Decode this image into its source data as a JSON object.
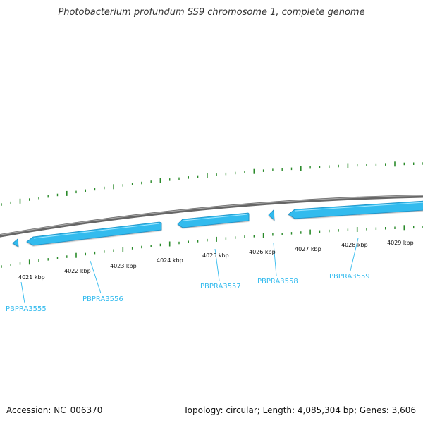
{
  "title": "Photobacterium profundum SS9 chromosome 1, complete genome",
  "footer": {
    "accession": "Accession: NC_006370",
    "summary": "Topology: circular; Length: 4,085,304 bp; Genes: 3,606"
  },
  "colors": {
    "gene": "#33bbee",
    "gene_dark": "#1a8fc4",
    "gene_light": "#8fe0ff",
    "tick": "#2a8a2a",
    "backbone": "#808080",
    "label": "#33bbee"
  },
  "chart_data": {
    "type": "genome-map",
    "tick_labels": [
      "4021 kbp",
      "4022 kbp",
      "4023 kbp",
      "4024 kbp",
      "4025 kbp",
      "4026 kbp",
      "4027 kbp",
      "4028 kbp",
      "4029 kbp"
    ],
    "genes": [
      {
        "label": "PBPRA3555",
        "strand": "-"
      },
      {
        "label": "PBPRA3556",
        "strand": "-"
      },
      {
        "label": "PBPRA3557",
        "strand": "-"
      },
      {
        "label": "PBPRA3558",
        "strand": "-"
      },
      {
        "label": "PBPRA3559",
        "strand": "-"
      }
    ]
  }
}
